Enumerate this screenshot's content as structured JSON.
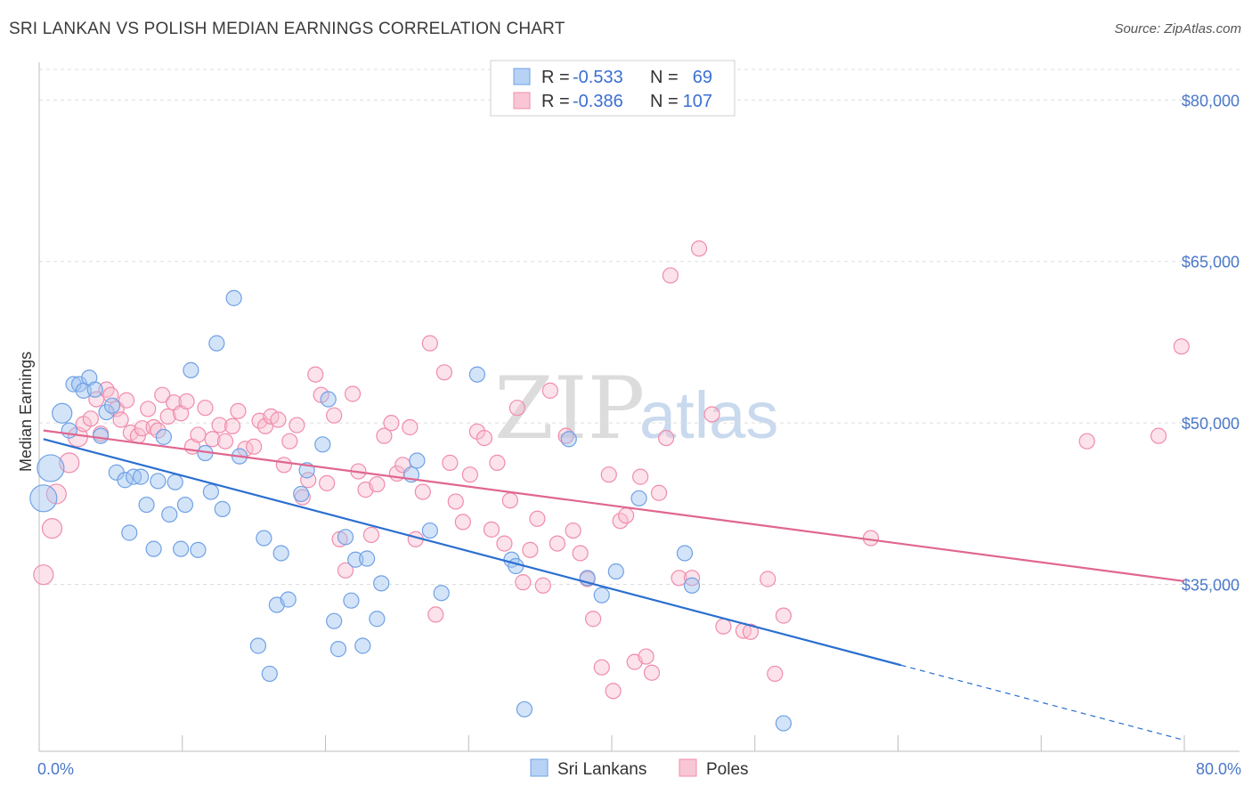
{
  "title": "SRI LANKAN VS POLISH MEDIAN EARNINGS CORRELATION CHART",
  "source": "Source: ZipAtlas.com",
  "watermark": {
    "zip": "ZIP",
    "atlas": "atlas"
  },
  "colors": {
    "blue": "#6fa1e6",
    "blue_line": "#2a6fd0",
    "pink": "#f08cab",
    "pink_line": "#e0668f"
  },
  "legend": {
    "r_label": "R =",
    "n_label": "N =",
    "rows": [
      {
        "r": "-0.533",
        "n": "69"
      },
      {
        "r": "-0.386",
        "n": "107"
      }
    ]
  },
  "bottom_legend": [
    "Sri Lankans",
    "Poles"
  ],
  "chart_data": {
    "type": "scatter",
    "title": "SRI LANKAN VS POLISH MEDIAN EARNINGS CORRELATION CHART",
    "xlabel": "",
    "ylabel": "Median Earnings",
    "xlim": [
      0,
      80
    ],
    "ylim": [
      19500,
      83500
    ],
    "x_tick_labels": [
      "0.0%",
      "80.0%"
    ],
    "y_ticks": [
      35000,
      50000,
      65000,
      80000
    ],
    "y_tick_labels": [
      "$35,000",
      "$50,000",
      "$65,000",
      "$80,000"
    ],
    "series": [
      {
        "name": "Sri Lankans",
        "r": -0.533,
        "n": 69,
        "trend": {
          "x0": 0.3,
          "y0": 48500,
          "x1": 60.2,
          "y1": 27500,
          "dash_x1": 79.8,
          "dash_y1": 20600
        },
        "points": [
          [
            0.3,
            43000,
            "l"
          ],
          [
            0.8,
            45800,
            "l"
          ],
          [
            1.6,
            50900,
            "m"
          ],
          [
            2.1,
            49300,
            "s"
          ],
          [
            2.4,
            53600,
            "s"
          ],
          [
            2.8,
            53600,
            "s"
          ],
          [
            3.1,
            53000,
            "s"
          ],
          [
            3.5,
            54200,
            "s"
          ],
          [
            3.9,
            53100,
            "s"
          ],
          [
            4.3,
            48800,
            "s"
          ],
          [
            4.7,
            51000,
            "s"
          ],
          [
            5.1,
            51600,
            "s"
          ],
          [
            5.4,
            45400,
            "s"
          ],
          [
            6.0,
            44700,
            "s"
          ],
          [
            6.3,
            39800,
            "s"
          ],
          [
            6.6,
            45000,
            "s"
          ],
          [
            7.1,
            45000,
            "s"
          ],
          [
            7.5,
            42400,
            "s"
          ],
          [
            8.0,
            38300,
            "s"
          ],
          [
            8.3,
            44600,
            "s"
          ],
          [
            8.7,
            48700,
            "s"
          ],
          [
            9.1,
            41500,
            "s"
          ],
          [
            9.5,
            44500,
            "s"
          ],
          [
            9.9,
            38300,
            "s"
          ],
          [
            10.2,
            42400,
            "s"
          ],
          [
            10.6,
            54900,
            "s"
          ],
          [
            11.1,
            38200,
            "s"
          ],
          [
            11.6,
            47200,
            "s"
          ],
          [
            12.0,
            43600,
            "s"
          ],
          [
            12.4,
            57400,
            "s"
          ],
          [
            12.8,
            42000,
            "s"
          ],
          [
            13.6,
            61600,
            "s"
          ],
          [
            14.0,
            46900,
            "s"
          ],
          [
            15.3,
            29300,
            "s"
          ],
          [
            15.7,
            39300,
            "s"
          ],
          [
            16.1,
            26700,
            "s"
          ],
          [
            16.6,
            33100,
            "s"
          ],
          [
            16.9,
            37900,
            "s"
          ],
          [
            17.4,
            33600,
            "s"
          ],
          [
            18.3,
            43400,
            "s"
          ],
          [
            18.7,
            45600,
            "s"
          ],
          [
            19.8,
            48000,
            "s"
          ],
          [
            20.2,
            52200,
            "s"
          ],
          [
            20.6,
            31600,
            "s"
          ],
          [
            20.9,
            29000,
            "s"
          ],
          [
            21.4,
            39400,
            "s"
          ],
          [
            21.8,
            33500,
            "s"
          ],
          [
            22.1,
            37300,
            "s"
          ],
          [
            22.6,
            29300,
            "s"
          ],
          [
            22.9,
            37400,
            "s"
          ],
          [
            23.6,
            31800,
            "s"
          ],
          [
            23.9,
            35100,
            "s"
          ],
          [
            26.0,
            45200,
            "s"
          ],
          [
            26.4,
            46500,
            "s"
          ],
          [
            27.3,
            40000,
            "s"
          ],
          [
            28.1,
            34200,
            "s"
          ],
          [
            30.6,
            54500,
            "s"
          ],
          [
            33.0,
            37300,
            "s"
          ],
          [
            33.3,
            36700,
            "s"
          ],
          [
            33.9,
            23400,
            "s"
          ],
          [
            37.0,
            48500,
            "s"
          ],
          [
            38.3,
            35600,
            "s"
          ],
          [
            39.3,
            34000,
            "s"
          ],
          [
            40.3,
            36200,
            "s"
          ],
          [
            41.9,
            43000,
            "s"
          ],
          [
            45.1,
            37900,
            "s"
          ],
          [
            45.6,
            34900,
            "s"
          ],
          [
            52.0,
            22100,
            "s"
          ]
        ]
      },
      {
        "name": "Poles",
        "r": -0.386,
        "n": 107,
        "trend": {
          "x0": 0.3,
          "y0": 49300,
          "x1": 80.0,
          "y1": 35300
        },
        "points": [
          [
            0.3,
            35900,
            "m"
          ],
          [
            0.9,
            40200,
            "m"
          ],
          [
            1.2,
            43400,
            "m"
          ],
          [
            2.1,
            46300,
            "m"
          ],
          [
            2.7,
            48700,
            "m"
          ],
          [
            3.1,
            49900,
            "s"
          ],
          [
            3.6,
            50400,
            "s"
          ],
          [
            4.0,
            52200,
            "s"
          ],
          [
            4.3,
            49000,
            "s"
          ],
          [
            4.7,
            53100,
            "s"
          ],
          [
            5.0,
            52600,
            "s"
          ],
          [
            5.4,
            51300,
            "s"
          ],
          [
            5.7,
            50300,
            "s"
          ],
          [
            6.1,
            52100,
            "s"
          ],
          [
            6.4,
            49100,
            "s"
          ],
          [
            6.9,
            48800,
            "s"
          ],
          [
            7.2,
            49500,
            "s"
          ],
          [
            7.6,
            51300,
            "s"
          ],
          [
            8.0,
            49600,
            "s"
          ],
          [
            8.3,
            49300,
            "s"
          ],
          [
            8.6,
            52600,
            "s"
          ],
          [
            9.0,
            50600,
            "s"
          ],
          [
            9.4,
            51900,
            "s"
          ],
          [
            9.9,
            50900,
            "s"
          ],
          [
            10.3,
            52000,
            "s"
          ],
          [
            10.7,
            47800,
            "s"
          ],
          [
            11.1,
            48900,
            "s"
          ],
          [
            11.6,
            51400,
            "s"
          ],
          [
            12.1,
            48500,
            "s"
          ],
          [
            12.6,
            49800,
            "s"
          ],
          [
            13.0,
            48300,
            "s"
          ],
          [
            13.5,
            49700,
            "s"
          ],
          [
            13.9,
            51100,
            "s"
          ],
          [
            14.4,
            47600,
            "s"
          ],
          [
            15.0,
            47800,
            "s"
          ],
          [
            15.4,
            50200,
            "s"
          ],
          [
            15.8,
            49700,
            "s"
          ],
          [
            16.2,
            50600,
            "s"
          ],
          [
            16.7,
            50300,
            "s"
          ],
          [
            17.1,
            46100,
            "s"
          ],
          [
            17.5,
            48300,
            "s"
          ],
          [
            18.0,
            49800,
            "s"
          ],
          [
            18.4,
            43100,
            "s"
          ],
          [
            18.8,
            44700,
            "s"
          ],
          [
            19.3,
            54500,
            "s"
          ],
          [
            19.7,
            52600,
            "s"
          ],
          [
            20.1,
            44400,
            "s"
          ],
          [
            20.6,
            50700,
            "s"
          ],
          [
            21.0,
            39200,
            "s"
          ],
          [
            21.4,
            36300,
            "s"
          ],
          [
            21.9,
            52700,
            "s"
          ],
          [
            22.3,
            45500,
            "s"
          ],
          [
            22.8,
            43800,
            "s"
          ],
          [
            23.2,
            39600,
            "s"
          ],
          [
            23.6,
            44300,
            "s"
          ],
          [
            24.1,
            48800,
            "s"
          ],
          [
            24.6,
            50000,
            "s"
          ],
          [
            25.0,
            45300,
            "s"
          ],
          [
            25.4,
            46100,
            "s"
          ],
          [
            25.9,
            49600,
            "s"
          ],
          [
            26.3,
            39200,
            "s"
          ],
          [
            26.8,
            43600,
            "s"
          ],
          [
            27.3,
            57400,
            "s"
          ],
          [
            27.7,
            32200,
            "s"
          ],
          [
            28.3,
            54700,
            "s"
          ],
          [
            28.7,
            46300,
            "s"
          ],
          [
            29.1,
            42700,
            "s"
          ],
          [
            29.6,
            40800,
            "s"
          ],
          [
            30.1,
            45200,
            "s"
          ],
          [
            30.6,
            49200,
            "s"
          ],
          [
            31.1,
            48600,
            "s"
          ],
          [
            31.6,
            40100,
            "s"
          ],
          [
            32.0,
            46300,
            "s"
          ],
          [
            32.5,
            38800,
            "s"
          ],
          [
            32.9,
            42800,
            "s"
          ],
          [
            33.4,
            51400,
            "s"
          ],
          [
            33.8,
            35200,
            "s"
          ],
          [
            34.3,
            38200,
            "s"
          ],
          [
            34.8,
            41100,
            "s"
          ],
          [
            35.2,
            34900,
            "s"
          ],
          [
            35.7,
            53000,
            "s"
          ],
          [
            36.2,
            38800,
            "s"
          ],
          [
            36.8,
            48800,
            "s"
          ],
          [
            37.3,
            40000,
            "s"
          ],
          [
            37.8,
            37900,
            "s"
          ],
          [
            38.3,
            35500,
            "s"
          ],
          [
            38.7,
            31800,
            "s"
          ],
          [
            39.3,
            27300,
            "s"
          ],
          [
            39.8,
            45200,
            "s"
          ],
          [
            40.1,
            25100,
            "s"
          ],
          [
            40.6,
            40900,
            "s"
          ],
          [
            41.0,
            41400,
            "s"
          ],
          [
            41.6,
            27800,
            "s"
          ],
          [
            42.0,
            45000,
            "s"
          ],
          [
            42.4,
            28300,
            "s"
          ],
          [
            42.8,
            26800,
            "s"
          ],
          [
            43.3,
            43500,
            "s"
          ],
          [
            43.8,
            48600,
            "s"
          ],
          [
            44.1,
            63700,
            "s"
          ],
          [
            44.7,
            35600,
            "s"
          ],
          [
            45.6,
            35600,
            "s"
          ],
          [
            46.1,
            66200,
            "s"
          ],
          [
            47.0,
            50800,
            "s"
          ],
          [
            47.8,
            31100,
            "s"
          ],
          [
            49.2,
            30700,
            "s"
          ],
          [
            49.7,
            30600,
            "s"
          ],
          [
            50.9,
            35500,
            "s"
          ],
          [
            51.4,
            26700,
            "s"
          ],
          [
            52.0,
            32100,
            "s"
          ],
          [
            58.1,
            39300,
            "s"
          ],
          [
            73.2,
            48300,
            "s"
          ],
          [
            78.2,
            48800,
            "s"
          ],
          [
            79.8,
            57100,
            "s"
          ]
        ]
      }
    ]
  }
}
